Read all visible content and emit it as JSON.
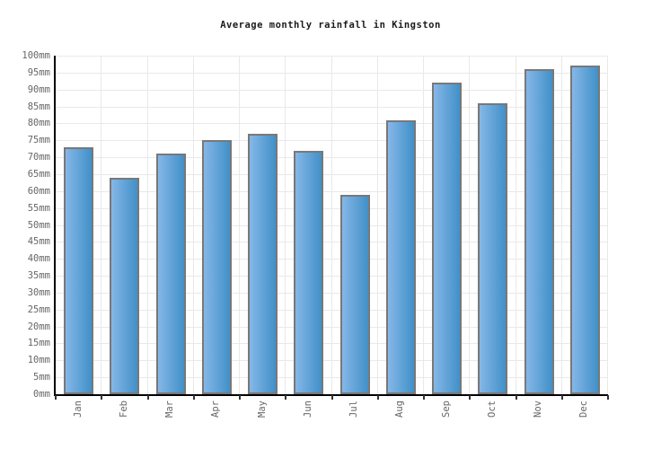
{
  "chart_data": {
    "type": "bar",
    "title": "Average monthly rainfall in Kingston",
    "categories": [
      "Jan",
      "Feb",
      "Mar",
      "Apr",
      "May",
      "Jun",
      "Jul",
      "Aug",
      "Sep",
      "Oct",
      "Nov",
      "Dec"
    ],
    "values": [
      73,
      64,
      71,
      75,
      77,
      72,
      59,
      81,
      92,
      86,
      96,
      97
    ],
    "unit": "mm",
    "ylabel": "",
    "xlabel": "",
    "ylim": [
      0,
      100
    ],
    "ytick_step": 5,
    "ytick_labels": [
      "0mm",
      "5mm",
      "10mm",
      "15mm",
      "20mm",
      "25mm",
      "30mm",
      "35mm",
      "40mm",
      "45mm",
      "50mm",
      "55mm",
      "60mm",
      "65mm",
      "70mm",
      "75mm",
      "80mm",
      "85mm",
      "90mm",
      "95mm",
      "100mm"
    ],
    "grid": "on",
    "legend": "none",
    "colors": {
      "background": "#ffffff",
      "bar_gradient_left": "#85b7e7",
      "bar_gradient_right": "#4190c8",
      "bar_border": "#787878",
      "gridline": "#e9e9e9",
      "axis": "#000000",
      "tick": "#333333",
      "axis_label": "#666666",
      "title": "#1a1a1a"
    }
  }
}
